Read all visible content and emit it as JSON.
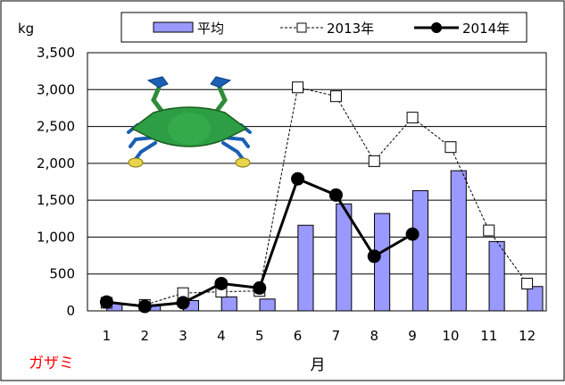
{
  "chart_data": {
    "type": "bar+line",
    "categories": [
      "1",
      "2",
      "3",
      "4",
      "5",
      "6",
      "7",
      "8",
      "9",
      "10",
      "11",
      "12"
    ],
    "series": [
      {
        "name": "平均",
        "type": "bar",
        "values": [
          100,
          80,
          140,
          190,
          160,
          1160,
          1450,
          1320,
          1630,
          1900,
          940,
          330
        ]
      },
      {
        "name": "2013年",
        "type": "line",
        "style": "dashed-open-square",
        "values": [
          110,
          80,
          240,
          260,
          270,
          3030,
          2910,
          2030,
          2620,
          2220,
          1090,
          370
        ]
      },
      {
        "name": "2014年",
        "type": "line",
        "style": "solid-filled-circle",
        "values": [
          120,
          60,
          110,
          370,
          310,
          1790,
          1570,
          740,
          1040,
          null,
          null,
          null
        ]
      }
    ],
    "yunit": "kg",
    "xlabel": "月",
    "ylim": [
      0,
      3500
    ],
    "yticks": [
      0,
      500,
      1000,
      1500,
      2000,
      2500,
      3000,
      3500
    ],
    "ytick_labels": [
      "0",
      "500",
      "1,000",
      "1,500",
      "2,000",
      "2,500",
      "3,000",
      "3,500"
    ],
    "species_label": "ガザミ",
    "grid": true,
    "legend_position": "top",
    "colors": {
      "bar_fill": "#9999ff",
      "bar_stroke": "#000000",
      "line": "#000000",
      "species_label": "#ff0000"
    },
    "icon": "blue-crab-illustration"
  }
}
